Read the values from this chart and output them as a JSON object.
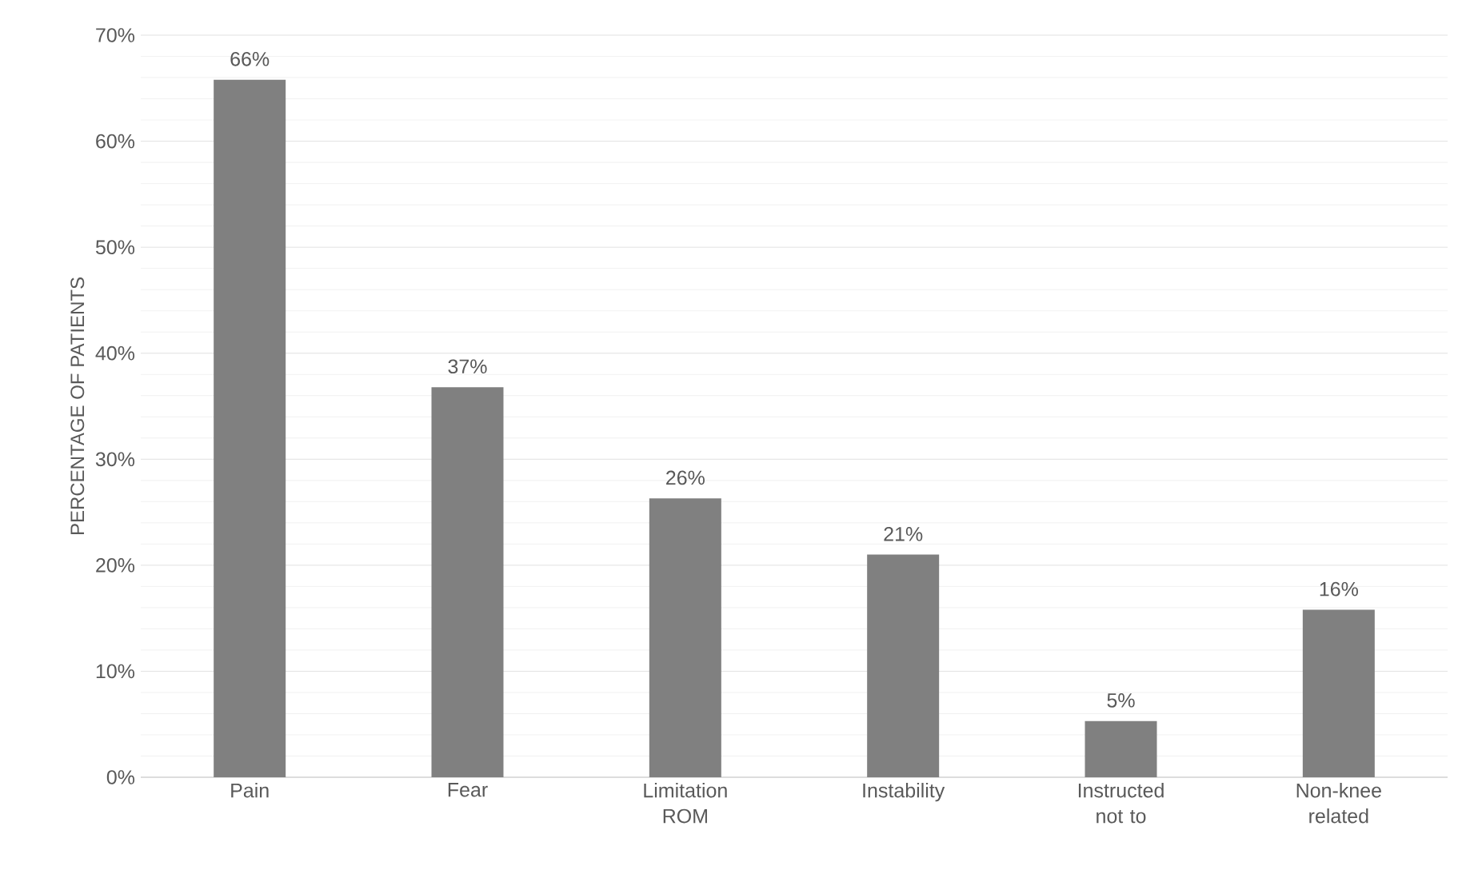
{
  "chart_data": {
    "type": "bar",
    "ylabel": "PERCENTAGE OF PATIENTS",
    "categories": [
      "Pain",
      "Fear",
      "Limitation ROM",
      "Instability",
      "Instructed not to",
      "Non-knee related"
    ],
    "values": [
      65.8,
      36.8,
      26.3,
      21.0,
      5.3,
      15.8
    ],
    "value_labels": [
      "66%",
      "37%",
      "26%",
      "21%",
      "5%",
      "16%"
    ],
    "color": "#808080",
    "ylim": [
      0,
      70
    ],
    "yticks": [
      {
        "value": 0,
        "label": "0%"
      },
      {
        "value": 10,
        "label": "10%"
      },
      {
        "value": 20,
        "label": "20%"
      },
      {
        "value": 30,
        "label": "30%"
      },
      {
        "value": 40,
        "label": "40%"
      },
      {
        "value": 50,
        "label": "50%"
      },
      {
        "value": 60,
        "label": "60%"
      },
      {
        "value": 70,
        "label": "70%"
      }
    ],
    "grid": true
  }
}
